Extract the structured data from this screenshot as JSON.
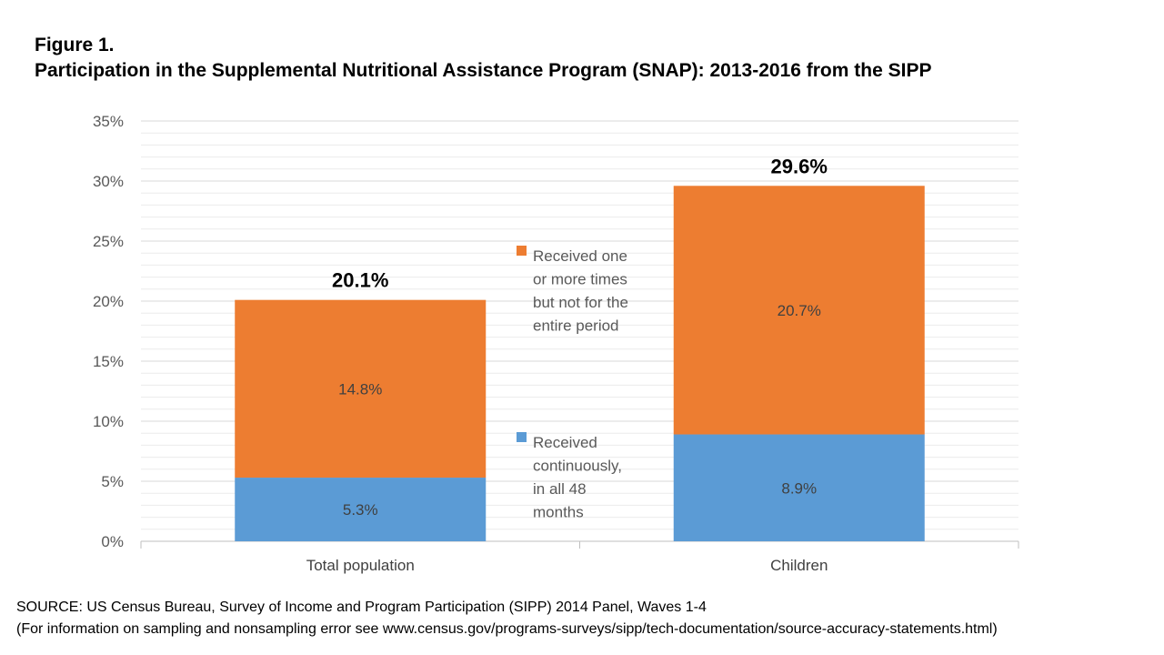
{
  "figure_label": "Figure 1.",
  "figure_title": "Participation in the Supplemental Nutritional Assistance Program (SNAP): 2013-2016 from the SIPP",
  "source_line1": "SOURCE: US Census Bureau, Survey of Income and Program Participation (SIPP) 2014 Panel, Waves 1-4",
  "source_line2": "(For information on sampling and nonsampling error see www.census.gov/programs-surveys/sipp/tech-documentation/source-accuracy-statements.html)",
  "chart_data": {
    "type": "bar",
    "stacked": true,
    "categories": [
      "Total population",
      "Children"
    ],
    "series": [
      {
        "name": "Received continuously, in all 48 months",
        "legend_lines": [
          "Received",
          "continuously,",
          "in all 48",
          "months"
        ],
        "values": [
          5.3,
          8.9
        ],
        "labels": [
          "5.3%",
          "8.9%"
        ],
        "color": "#5B9BD5"
      },
      {
        "name": "Received one or more times but not for the entire period",
        "legend_lines": [
          "Received one",
          "or more times",
          "but not for the",
          "entire period"
        ],
        "values": [
          14.8,
          20.7
        ],
        "labels": [
          "14.8%",
          "20.7%"
        ],
        "color": "#ED7D31"
      }
    ],
    "totals": [
      20.1,
      29.6
    ],
    "total_labels": [
      "20.1%",
      "29.6%"
    ],
    "ylim": [
      0,
      35
    ],
    "yticks": [
      0,
      5,
      10,
      15,
      20,
      25,
      30,
      35
    ],
    "ytick_labels": [
      "0%",
      "5%",
      "10%",
      "15%",
      "20%",
      "25%",
      "30%",
      "35%"
    ],
    "grid": true,
    "legend_position": "center, between bars"
  }
}
